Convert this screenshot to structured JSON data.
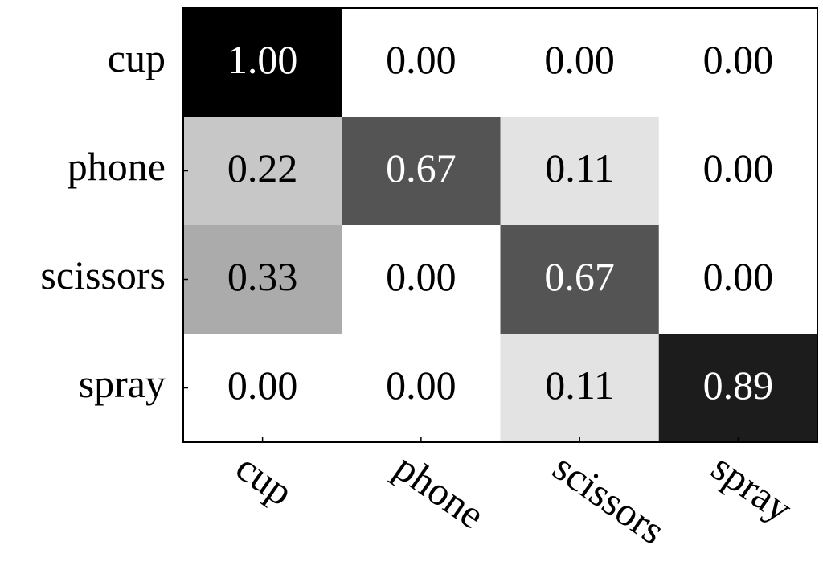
{
  "chart_data": {
    "type": "heatmap",
    "rows": [
      "cup",
      "phone",
      "scissors",
      "spray"
    ],
    "columns": [
      "cup",
      "phone",
      "scissors",
      "spray"
    ],
    "values": [
      [
        1.0,
        0.0,
        0.0,
        0.0
      ],
      [
        0.22,
        0.67,
        0.11,
        0.0
      ],
      [
        0.33,
        0.0,
        0.67,
        0.0
      ],
      [
        0.0,
        0.0,
        0.11,
        0.89
      ]
    ],
    "value_labels": [
      [
        "1.00",
        "0.00",
        "0.00",
        "0.00"
      ],
      [
        "0.22",
        "0.67",
        "0.11",
        "0.00"
      ],
      [
        "0.33",
        "0.00",
        "0.67",
        "0.00"
      ],
      [
        "0.00",
        "0.00",
        "0.11",
        "0.89"
      ]
    ]
  }
}
